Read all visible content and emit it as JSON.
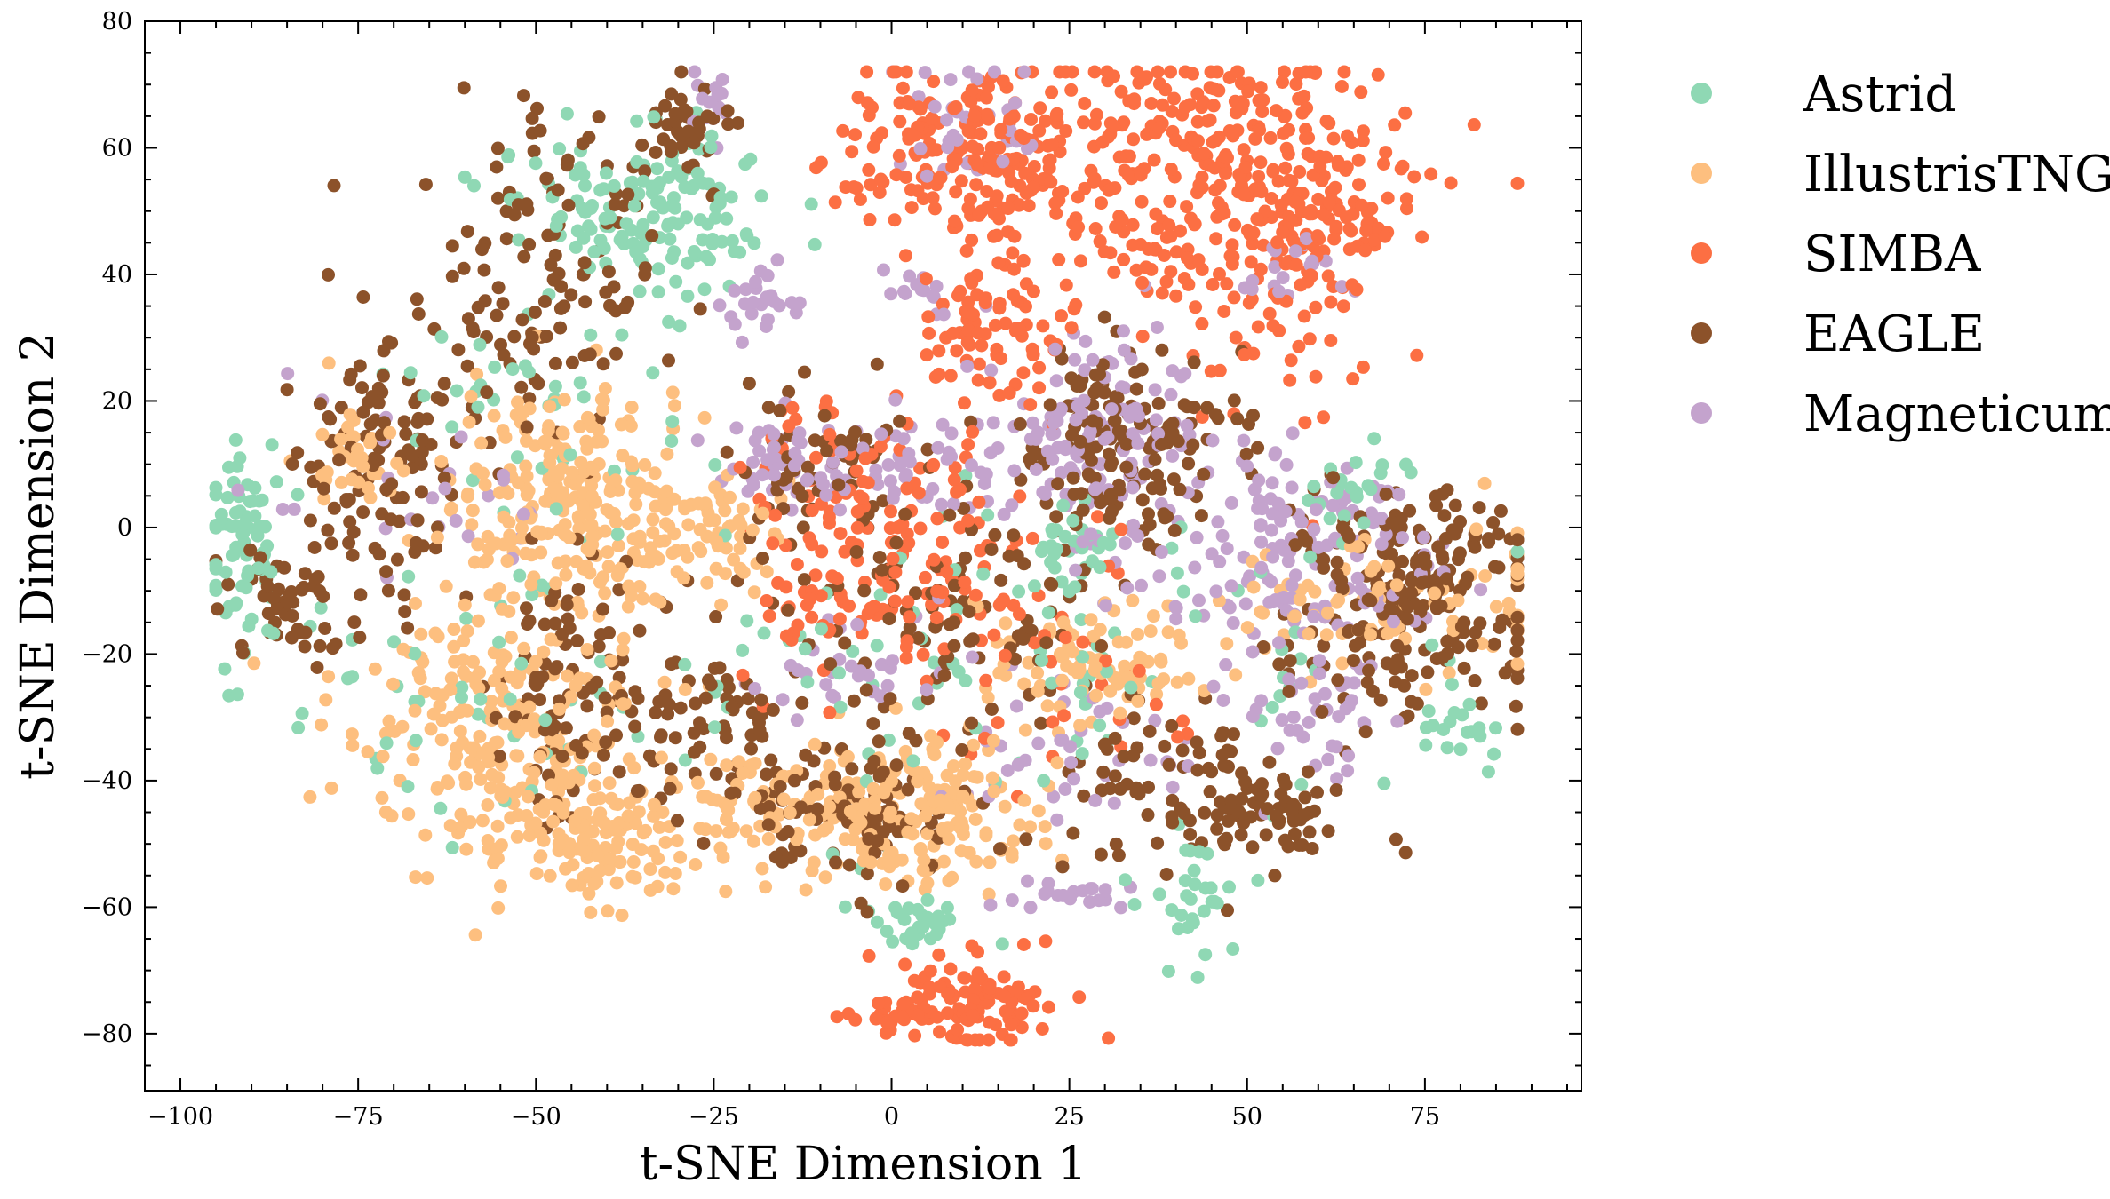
{
  "chart_data": {
    "type": "scatter",
    "title": "",
    "xlabel": "t-SNE Dimension 1",
    "ylabel": "t-SNE Dimension 2",
    "xlim": [
      -105,
      97
    ],
    "ylim": [
      -89,
      80
    ],
    "xticks": [
      -100,
      -75,
      -50,
      -25,
      0,
      25,
      50,
      75
    ],
    "yticks": [
      -80,
      -60,
      -40,
      -20,
      0,
      20,
      40,
      60,
      80
    ],
    "x_tick_labels": [
      "−100",
      "−75",
      "−50",
      "−25",
      "0",
      "25",
      "50",
      "75"
    ],
    "y_tick_labels": [
      "−80",
      "−60",
      "−40",
      "−20",
      "0",
      "20",
      "40",
      "60",
      "80"
    ],
    "grid": false,
    "legend_position": "outside-right",
    "series": [
      {
        "name": "Astrid",
        "color": "#8fd8b4",
        "clusters": [
          {
            "cx": -36,
            "cy": 50,
            "sx": 9,
            "sy": 6,
            "n": 150
          },
          {
            "cx": -91,
            "cy": -2,
            "sx": 3,
            "sy": 9,
            "n": 75
          },
          {
            "cx": -50,
            "cy": 20,
            "sx": 12,
            "sy": 8,
            "n": 40
          },
          {
            "cx": 25,
            "cy": -3,
            "sx": 3,
            "sy": 3,
            "n": 30
          },
          {
            "cx": 3,
            "cy": -62,
            "sx": 5,
            "sy": 2,
            "n": 30
          },
          {
            "cx": 42,
            "cy": -58,
            "sx": 3,
            "sy": 4,
            "n": 30
          },
          {
            "cx": 65,
            "cy": 5,
            "sx": 4,
            "sy": 4,
            "n": 25
          },
          {
            "cx": 78,
            "cy": -32,
            "sx": 3,
            "sy": 3,
            "n": 18
          },
          {
            "cx": 10,
            "cy": -20,
            "sx": 40,
            "sy": 15,
            "n": 110
          },
          {
            "cx": -60,
            "cy": -25,
            "sx": 15,
            "sy": 12,
            "n": 40
          }
        ]
      },
      {
        "name": "IllustrisTNG",
        "color": "#fdbf7f",
        "clusters": [
          {
            "cx": -45,
            "cy": 5,
            "sx": 9,
            "sy": 9,
            "n": 230
          },
          {
            "cx": -55,
            "cy": -30,
            "sx": 10,
            "sy": 10,
            "n": 220
          },
          {
            "cx": -42,
            "cy": -48,
            "sx": 8,
            "sy": 6,
            "n": 140
          },
          {
            "cx": -26,
            "cy": -2,
            "sx": 6,
            "sy": 5,
            "n": 70
          },
          {
            "cx": -12,
            "cy": -45,
            "sx": 10,
            "sy": 6,
            "n": 130
          },
          {
            "cx": 6,
            "cy": -45,
            "sx": 8,
            "sy": 6,
            "n": 130
          },
          {
            "cx": 28,
            "cy": -22,
            "sx": 8,
            "sy": 5,
            "n": 90
          },
          {
            "cx": 70,
            "cy": -12,
            "sx": 12,
            "sy": 6,
            "n": 90
          },
          {
            "cx": -75,
            "cy": 12,
            "sx": 4,
            "sy": 4,
            "n": 35
          }
        ]
      },
      {
        "name": "SIMBA",
        "color": "#fc6f43",
        "clusters": [
          {
            "cx": 12,
            "cy": 60,
            "sx": 9,
            "sy": 7,
            "n": 200
          },
          {
            "cx": 45,
            "cy": 62,
            "sx": 14,
            "sy": 7,
            "n": 230
          },
          {
            "cx": 60,
            "cy": 48,
            "sx": 7,
            "sy": 5,
            "n": 90
          },
          {
            "cx": 42,
            "cy": 43,
            "sx": 10,
            "sy": 5,
            "n": 90
          },
          {
            "cx": 14,
            "cy": 32,
            "sx": 6,
            "sy": 6,
            "n": 80
          },
          {
            "cx": -3,
            "cy": -3,
            "sx": 10,
            "sy": 12,
            "n": 170
          },
          {
            "cx": 12,
            "cy": -75,
            "sx": 6,
            "sy": 4,
            "n": 100
          },
          {
            "cx": 0,
            "cy": -77,
            "sx": 3,
            "sy": 2,
            "n": 25
          },
          {
            "cx": 18,
            "cy": -20,
            "sx": 14,
            "sy": 10,
            "n": 50
          },
          {
            "cx": 55,
            "cy": 28,
            "sx": 8,
            "sy": 6,
            "n": 30
          }
        ]
      },
      {
        "name": "EAGLE",
        "color": "#8c522a",
        "clusters": [
          {
            "cx": -50,
            "cy": 40,
            "sx": 8,
            "sy": 12,
            "n": 120
          },
          {
            "cx": -28,
            "cy": 62,
            "sx": 3,
            "sy": 5,
            "n": 40
          },
          {
            "cx": -72,
            "cy": 10,
            "sx": 6,
            "sy": 12,
            "n": 120
          },
          {
            "cx": -85,
            "cy": -12,
            "sx": 4,
            "sy": 4,
            "n": 50
          },
          {
            "cx": -44,
            "cy": -25,
            "sx": 6,
            "sy": 10,
            "n": 100
          },
          {
            "cx": -24,
            "cy": -30,
            "sx": 5,
            "sy": 6,
            "n": 50
          },
          {
            "cx": 33,
            "cy": 12,
            "sx": 8,
            "sy": 8,
            "n": 160
          },
          {
            "cx": 72,
            "cy": -10,
            "sx": 10,
            "sy": 9,
            "n": 220
          },
          {
            "cx": 10,
            "cy": -15,
            "sx": 12,
            "sy": 8,
            "n": 90
          },
          {
            "cx": -5,
            "cy": -45,
            "sx": 10,
            "sy": 6,
            "n": 110
          },
          {
            "cx": 40,
            "cy": -40,
            "sx": 12,
            "sy": 8,
            "n": 100
          },
          {
            "cx": 55,
            "cy": -45,
            "sx": 4,
            "sy": 3,
            "n": 40
          },
          {
            "cx": -10,
            "cy": 10,
            "sx": 8,
            "sy": 8,
            "n": 70
          }
        ]
      },
      {
        "name": "Magneticum",
        "color": "#c4a3cd",
        "clusters": [
          {
            "cx": 10,
            "cy": 65,
            "sx": 6,
            "sy": 5,
            "n": 35
          },
          {
            "cx": -25,
            "cy": 67,
            "sx": 2,
            "sy": 3,
            "n": 15
          },
          {
            "cx": -18,
            "cy": 35,
            "sx": 3,
            "sy": 4,
            "n": 25
          },
          {
            "cx": 5,
            "cy": 37,
            "sx": 3,
            "sy": 2,
            "n": 15
          },
          {
            "cx": 30,
            "cy": 15,
            "sx": 8,
            "sy": 8,
            "n": 130
          },
          {
            "cx": 55,
            "cy": 0,
            "sx": 10,
            "sy": 6,
            "n": 100
          },
          {
            "cx": 55,
            "cy": 40,
            "sx": 4,
            "sy": 3,
            "n": 20
          },
          {
            "cx": -15,
            "cy": 10,
            "sx": 6,
            "sy": 4,
            "n": 50
          },
          {
            "cx": 5,
            "cy": 10,
            "sx": 6,
            "sy": 4,
            "n": 40
          },
          {
            "cx": -65,
            "cy": 5,
            "sx": 10,
            "sy": 8,
            "n": 25
          },
          {
            "cx": 25,
            "cy": -35,
            "sx": 8,
            "sy": 6,
            "n": 40
          },
          {
            "cx": 25,
            "cy": -58,
            "sx": 4,
            "sy": 2,
            "n": 20
          },
          {
            "cx": 60,
            "cy": -30,
            "sx": 6,
            "sy": 5,
            "n": 40
          },
          {
            "cx": 55,
            "cy": -13,
            "sx": 12,
            "sy": 4,
            "n": 50
          },
          {
            "cx": -5,
            "cy": -22,
            "sx": 8,
            "sy": 5,
            "n": 35
          }
        ]
      }
    ]
  }
}
